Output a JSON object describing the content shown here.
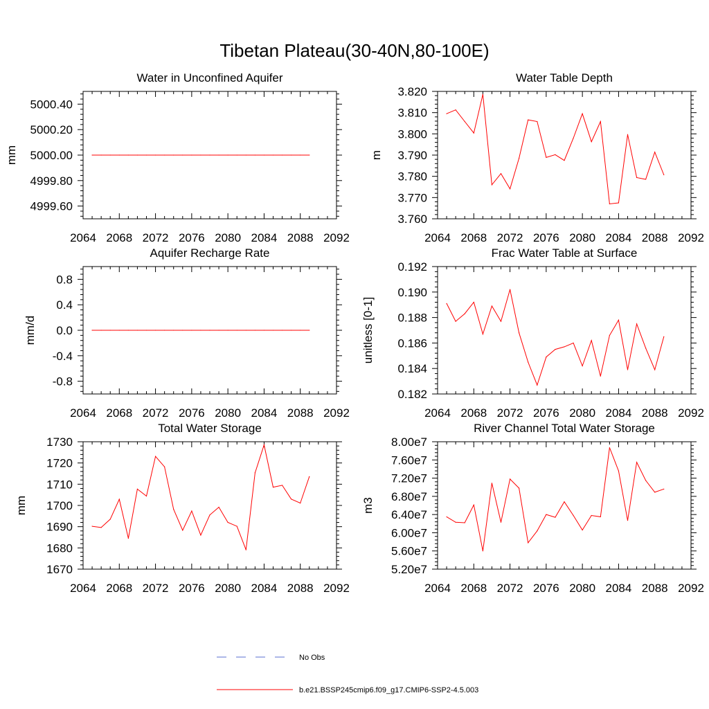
{
  "title": "Tibetan Plateau(30-40N,80-100E)",
  "colors": {
    "model_line": "#ff0000",
    "obs_line": "#5a6fd0",
    "axis": "#000000"
  },
  "legend": {
    "obs_label": "No Obs",
    "model_label": "b.e21.BSSP245cmip6.f09_g17.CMIP6-SSP2-4.5.003"
  },
  "chart_data": [
    {
      "type": "line",
      "title": "Water in Unconfined Aquifer",
      "ylabel": "mm",
      "xlim": [
        2064,
        2092
      ],
      "ylim": [
        4999.5,
        5000.5
      ],
      "x_ticks": [
        2064,
        2068,
        2072,
        2076,
        2080,
        2084,
        2088,
        2092
      ],
      "x_tick_labels": [
        "2064",
        "2068",
        "2072",
        "2076",
        "2080",
        "2084",
        "2088",
        "2092"
      ],
      "y_ticks": [
        4999.6,
        4999.8,
        5000.0,
        5000.2,
        5000.4
      ],
      "y_tick_labels": [
        "4999.60",
        "4999.80",
        "5000.00",
        "5000.20",
        "5000.40"
      ],
      "series": [
        {
          "x": [
            2065,
            2066,
            2067,
            2068,
            2069,
            2070,
            2071,
            2072,
            2073,
            2074,
            2075,
            2076,
            2077,
            2078,
            2079,
            2080,
            2081,
            2082,
            2083,
            2084,
            2085,
            2086,
            2087,
            2088,
            2089
          ],
          "values": [
            5000.0,
            5000.0,
            5000.0,
            5000.0,
            5000.0,
            5000.0,
            5000.0,
            5000.0,
            5000.0,
            5000.0,
            5000.0,
            5000.0,
            5000.0,
            5000.0,
            5000.0,
            5000.0,
            5000.0,
            5000.0,
            5000.0,
            5000.0,
            5000.0,
            5000.0,
            5000.0,
            5000.0,
            5000.0
          ]
        }
      ]
    },
    {
      "type": "line",
      "title": "Water Table Depth",
      "ylabel": "m",
      "xlim": [
        2064,
        2092
      ],
      "ylim": [
        3.76,
        3.82
      ],
      "x_ticks": [
        2064,
        2068,
        2072,
        2076,
        2080,
        2084,
        2088,
        2092
      ],
      "x_tick_labels": [
        "2064",
        "2068",
        "2072",
        "2076",
        "2080",
        "2084",
        "2088",
        "2092"
      ],
      "y_ticks": [
        3.76,
        3.77,
        3.78,
        3.79,
        3.8,
        3.81,
        3.82
      ],
      "y_tick_labels": [
        "3.760",
        "3.770",
        "3.780",
        "3.790",
        "3.800",
        "3.810",
        "3.820"
      ],
      "series": [
        {
          "x": [
            2065,
            2066,
            2067,
            2068,
            2069,
            2070,
            2071,
            2072,
            2073,
            2074,
            2075,
            2076,
            2077,
            2078,
            2079,
            2080,
            2081,
            2082,
            2083,
            2084,
            2085,
            2086,
            2087,
            2088,
            2089
          ],
          "values": [
            3.8095,
            3.8113,
            3.8058,
            3.8004,
            3.8186,
            3.776,
            3.7813,
            3.7741,
            3.7885,
            3.8066,
            3.8058,
            3.7889,
            3.7902,
            3.7875,
            3.798,
            3.8095,
            3.7963,
            3.8058,
            3.767,
            3.7675,
            3.7997,
            3.7794,
            3.7786,
            3.7914,
            3.7807
          ]
        }
      ]
    },
    {
      "type": "line",
      "title": "Aquifer Recharge Rate",
      "ylabel": "mm/d",
      "xlim": [
        2064,
        2092
      ],
      "ylim": [
        -1.0,
        1.0
      ],
      "x_ticks": [
        2064,
        2068,
        2072,
        2076,
        2080,
        2084,
        2088,
        2092
      ],
      "x_tick_labels": [
        "2064",
        "2068",
        "2072",
        "2076",
        "2080",
        "2084",
        "2088",
        "2092"
      ],
      "y_ticks": [
        -0.8,
        -0.4,
        0.0,
        0.4,
        0.8
      ],
      "y_tick_labels": [
        "-0.8",
        "-0.4",
        "0.0",
        "0.4",
        "0.8"
      ],
      "series": [
        {
          "x": [
            2065,
            2066,
            2067,
            2068,
            2069,
            2070,
            2071,
            2072,
            2073,
            2074,
            2075,
            2076,
            2077,
            2078,
            2079,
            2080,
            2081,
            2082,
            2083,
            2084,
            2085,
            2086,
            2087,
            2088,
            2089
          ],
          "values": [
            0.0,
            0.0,
            0.0,
            0.0,
            0.0,
            0.0,
            0.0,
            0.0,
            0.0,
            0.0,
            0.0,
            0.0,
            0.0,
            0.0,
            0.0,
            0.0,
            0.0,
            0.0,
            0.0,
            0.0,
            0.0,
            0.0,
            0.0,
            0.0,
            0.0
          ]
        }
      ]
    },
    {
      "type": "line",
      "title": "Frac Water Table at Surface",
      "ylabel": "unitless [0-1]",
      "xlim": [
        2064,
        2092
      ],
      "ylim": [
        0.182,
        0.192
      ],
      "x_ticks": [
        2064,
        2068,
        2072,
        2076,
        2080,
        2084,
        2088,
        2092
      ],
      "x_tick_labels": [
        "2064",
        "2068",
        "2072",
        "2076",
        "2080",
        "2084",
        "2088",
        "2092"
      ],
      "y_ticks": [
        0.182,
        0.184,
        0.186,
        0.188,
        0.19,
        0.192
      ],
      "y_tick_labels": [
        "0.182",
        "0.184",
        "0.186",
        "0.188",
        "0.190",
        "0.192"
      ],
      "series": [
        {
          "x": [
            2065,
            2066,
            2067,
            2068,
            2069,
            2070,
            2071,
            2072,
            2073,
            2074,
            2075,
            2076,
            2077,
            2078,
            2079,
            2080,
            2081,
            2082,
            2083,
            2084,
            2085,
            2086,
            2087,
            2088,
            2089
          ],
          "values": [
            0.1891,
            0.1877,
            0.1883,
            0.1892,
            0.1867,
            0.1889,
            0.1877,
            0.1902,
            0.1868,
            0.1845,
            0.1827,
            0.1849,
            0.1855,
            0.1857,
            0.186,
            0.1842,
            0.1862,
            0.1834,
            0.1866,
            0.1878,
            0.1839,
            0.1875,
            0.1856,
            0.1839,
            0.1865
          ]
        }
      ]
    },
    {
      "type": "line",
      "title": "Total Water Storage",
      "ylabel": "mm",
      "xlim": [
        2064,
        2092
      ],
      "ylim": [
        1670,
        1730
      ],
      "x_ticks": [
        2064,
        2068,
        2072,
        2076,
        2080,
        2084,
        2088,
        2092
      ],
      "x_tick_labels": [
        "2064",
        "2068",
        "2072",
        "2076",
        "2080",
        "2084",
        "2088",
        "2092"
      ],
      "y_ticks": [
        1670,
        1680,
        1690,
        1700,
        1710,
        1720,
        1730
      ],
      "y_tick_labels": [
        "1670",
        "1680",
        "1690",
        "1700",
        "1710",
        "1720",
        "1730"
      ],
      "series": [
        {
          "x": [
            2065,
            2066,
            2067,
            2068,
            2069,
            2070,
            2071,
            2072,
            2073,
            2074,
            2075,
            2076,
            2077,
            2078,
            2079,
            2080,
            2081,
            2082,
            2083,
            2084,
            2085,
            2086,
            2087,
            2088,
            2089
          ],
          "values": [
            1690.2,
            1689.6,
            1693.5,
            1702.9,
            1684.5,
            1707.7,
            1704.4,
            1723.1,
            1718.2,
            1698.2,
            1688.3,
            1697.4,
            1686.0,
            1695.5,
            1699.2,
            1692.0,
            1690.2,
            1679.1,
            1715.4,
            1728.5,
            1708.6,
            1709.5,
            1703.0,
            1701.1,
            1713.6
          ]
        }
      ]
    },
    {
      "type": "line",
      "title": "River Channel Total Water Storage",
      "ylabel": "m3",
      "xlim": [
        2064,
        2092
      ],
      "ylim": [
        52000000,
        80000000
      ],
      "x_ticks": [
        2064,
        2068,
        2072,
        2076,
        2080,
        2084,
        2088,
        2092
      ],
      "x_tick_labels": [
        "2064",
        "2068",
        "2072",
        "2076",
        "2080",
        "2084",
        "2088",
        "2092"
      ],
      "y_ticks": [
        52000000,
        56000000,
        60000000,
        64000000,
        68000000,
        72000000,
        76000000,
        80000000
      ],
      "y_tick_labels": [
        "5.20e7",
        "5.60e7",
        "6.00e7",
        "6.40e7",
        "6.80e7",
        "7.20e7",
        "7.60e7",
        "8.00e7"
      ],
      "series": [
        {
          "x": [
            2065,
            2066,
            2067,
            2068,
            2069,
            2070,
            2071,
            2072,
            2073,
            2074,
            2075,
            2076,
            2077,
            2078,
            2079,
            2080,
            2081,
            2082,
            2083,
            2084,
            2085,
            2086,
            2087,
            2088,
            2089
          ],
          "values": [
            63500000,
            62300000,
            62200000,
            66100000,
            56000000,
            70900000,
            62300000,
            71800000,
            69800000,
            57800000,
            60400000,
            64000000,
            63400000,
            66800000,
            63800000,
            60600000,
            63800000,
            63500000,
            78700000,
            73600000,
            62700000,
            75500000,
            71500000,
            68900000,
            69600000
          ]
        }
      ]
    }
  ]
}
